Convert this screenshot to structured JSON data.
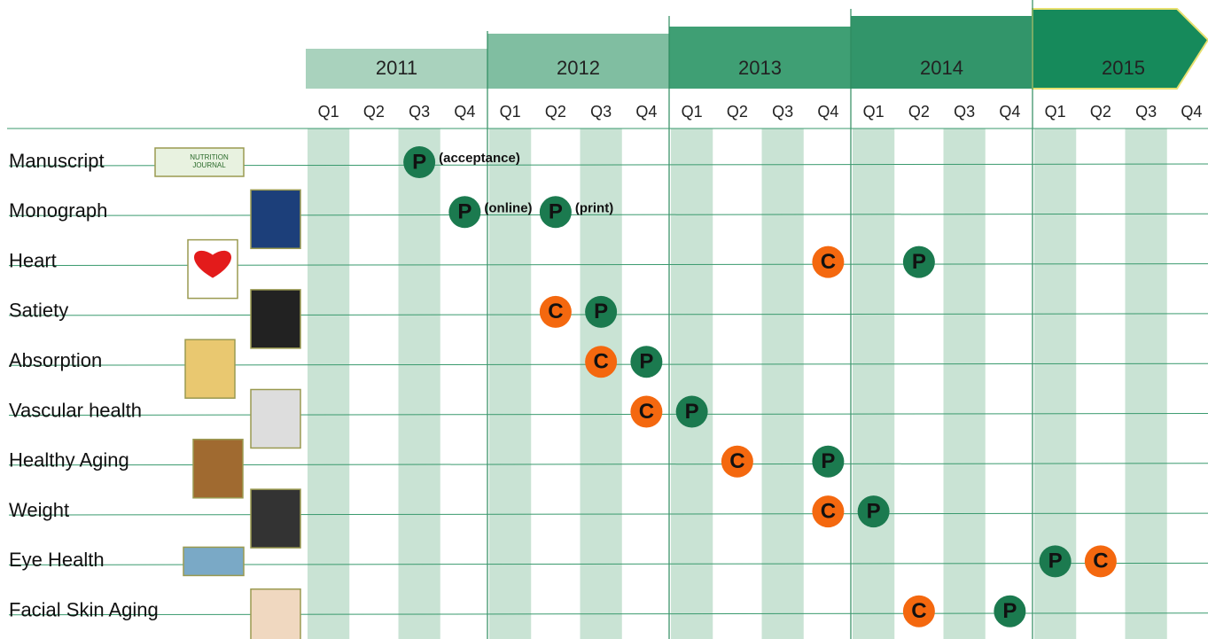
{
  "years": [
    "2011",
    "2012",
    "2013",
    "2014",
    "2015"
  ],
  "quarters": [
    "Q1",
    "Q2",
    "Q3",
    "Q4"
  ],
  "rows": [
    {
      "label": "Manuscript",
      "icon_text": [
        "NUTRITION",
        "JOURNAL"
      ],
      "events": [
        {
          "mark": "P",
          "year": "2011",
          "quarter": "Q3",
          "note": "(acceptance)"
        }
      ]
    },
    {
      "label": "Monograph",
      "events": [
        {
          "mark": "P",
          "year": "2011",
          "quarter": "Q4",
          "note": "(online)"
        },
        {
          "mark": "P",
          "year": "2012",
          "quarter": "Q2",
          "note": "(print)"
        }
      ]
    },
    {
      "label": "Heart",
      "events": [
        {
          "mark": "C",
          "year": "2013",
          "quarter": "Q4"
        },
        {
          "mark": "P",
          "year": "2014",
          "quarter": "Q2"
        }
      ]
    },
    {
      "label": "Satiety",
      "events": [
        {
          "mark": "C",
          "year": "2012",
          "quarter": "Q2"
        },
        {
          "mark": "P",
          "year": "2012",
          "quarter": "Q3"
        }
      ]
    },
    {
      "label": "Absorption",
      "events": [
        {
          "mark": "C",
          "year": "2012",
          "quarter": "Q3"
        },
        {
          "mark": "P",
          "year": "2012",
          "quarter": "Q4"
        }
      ]
    },
    {
      "label": "Vascular health",
      "events": [
        {
          "mark": "C",
          "year": "2012",
          "quarter": "Q4"
        },
        {
          "mark": "P",
          "year": "2013",
          "quarter": "Q1"
        }
      ]
    },
    {
      "label": "Healthy Aging",
      "events": [
        {
          "mark": "C",
          "year": "2013",
          "quarter": "Q2"
        },
        {
          "mark": "P",
          "year": "2013",
          "quarter": "Q4"
        }
      ]
    },
    {
      "label": "Weight",
      "events": [
        {
          "mark": "C",
          "year": "2013",
          "quarter": "Q4"
        },
        {
          "mark": "P",
          "year": "2014",
          "quarter": "Q1"
        }
      ]
    },
    {
      "label": "Eye Health",
      "events": [
        {
          "mark": "P",
          "year": "2015",
          "quarter": "Q1"
        },
        {
          "mark": "C",
          "year": "2015",
          "quarter": "Q2"
        }
      ]
    },
    {
      "label": "Facial Skin Aging",
      "events": [
        {
          "mark": "C",
          "year": "2014",
          "quarter": "Q2"
        },
        {
          "mark": "P",
          "year": "2014",
          "quarter": "Q4"
        }
      ]
    }
  ]
}
